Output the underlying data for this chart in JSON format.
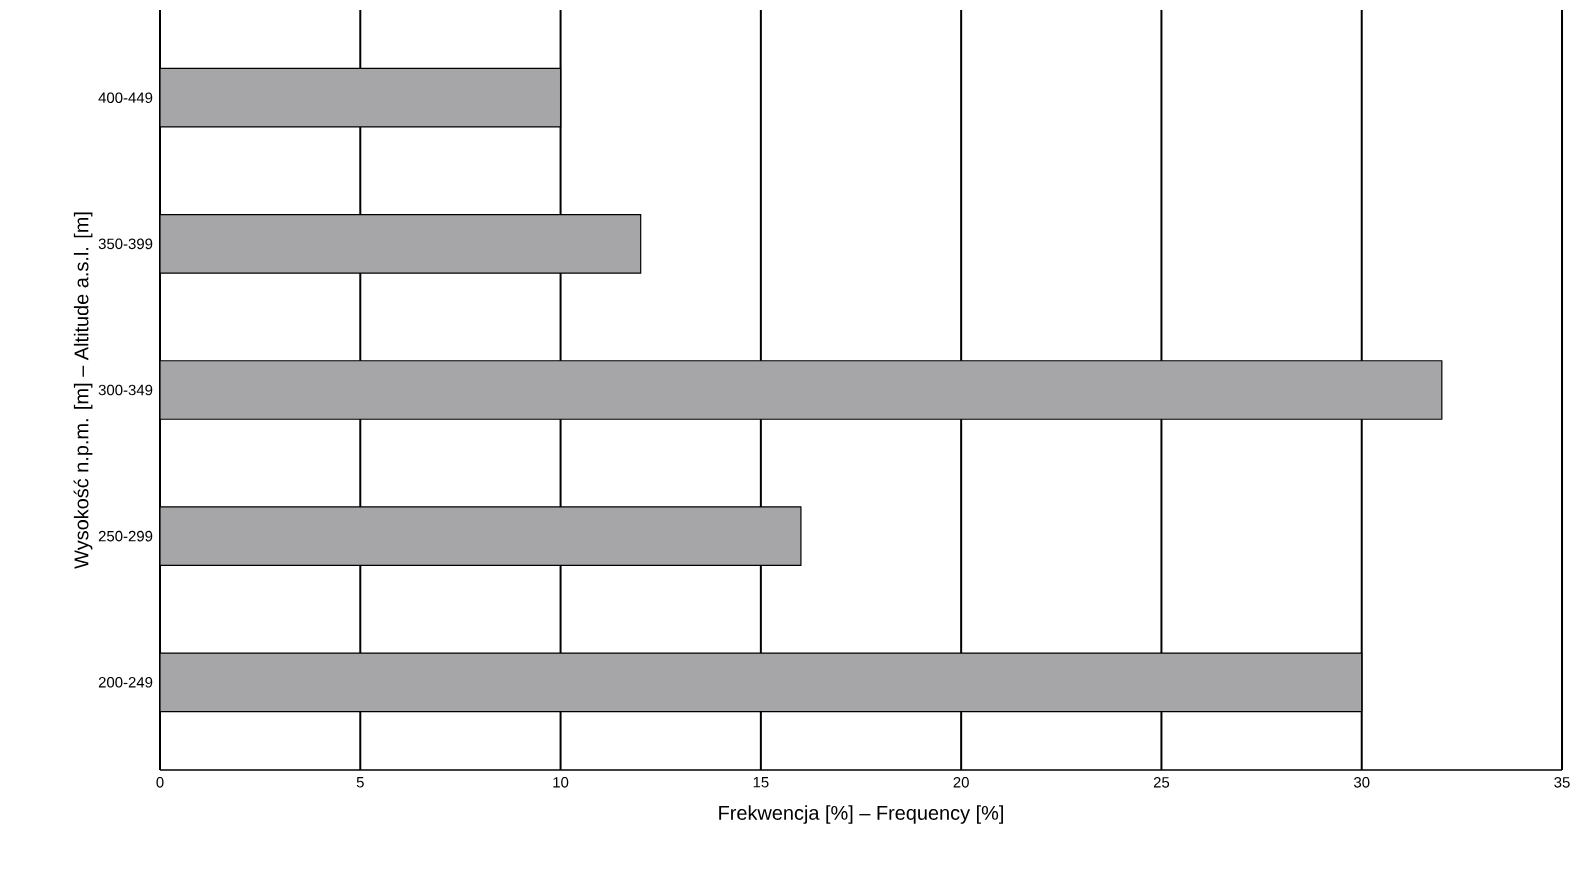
{
  "chart_data": {
    "type": "bar",
    "orientation": "horizontal",
    "xlabel": "Frekwencja [%] – Frequency [%]",
    "ylabel": "Wysokość n.p.m. [m] – Altitude a.s.l. [m]",
    "categories": [
      "400-449",
      "350-399",
      "300-349",
      "250-299",
      "200-249"
    ],
    "values": [
      10,
      12,
      32,
      16,
      30
    ],
    "color": "#a6a6a8",
    "xlim": [
      0,
      35
    ],
    "xticks": [
      0,
      5,
      10,
      15,
      20,
      25,
      30,
      35
    ],
    "grid": "x"
  }
}
